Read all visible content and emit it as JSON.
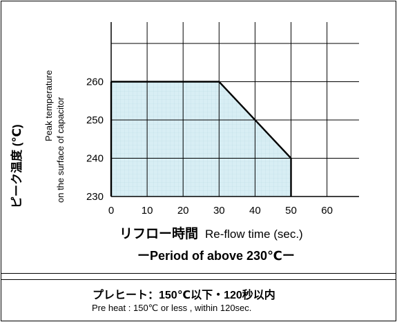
{
  "chart_data": {
    "type": "area",
    "ylabel_jp": "ピーク温度 (℃)",
    "ylabel_en_line1": "Peak temperature",
    "ylabel_en_line2": "on the surface of capacitor",
    "xlabel_jp": "リフロー時間",
    "xlabel_en": "Re-flow time (sec.)",
    "xlabel_sub": "ーPeriod of above 230℃ー",
    "xlim": [
      0,
      70
    ],
    "ylim": [
      230,
      275
    ],
    "x_ticks": [
      0,
      10,
      20,
      30,
      40,
      50,
      60
    ],
    "y_ticks": [
      230,
      240,
      250,
      260
    ],
    "grid": true,
    "series": [
      {
        "x": [
          0,
          30,
          50,
          50
        ],
        "y": [
          260,
          260,
          240,
          230
        ]
      }
    ],
    "fill_color": "#d8eef4",
    "line_color": "#000000"
  },
  "footer": {
    "preheat_jp": "プレヒート：150℃以下・120秒以内",
    "preheat_en": "Pre heat : 150℃ or less ,  within 120sec."
  }
}
